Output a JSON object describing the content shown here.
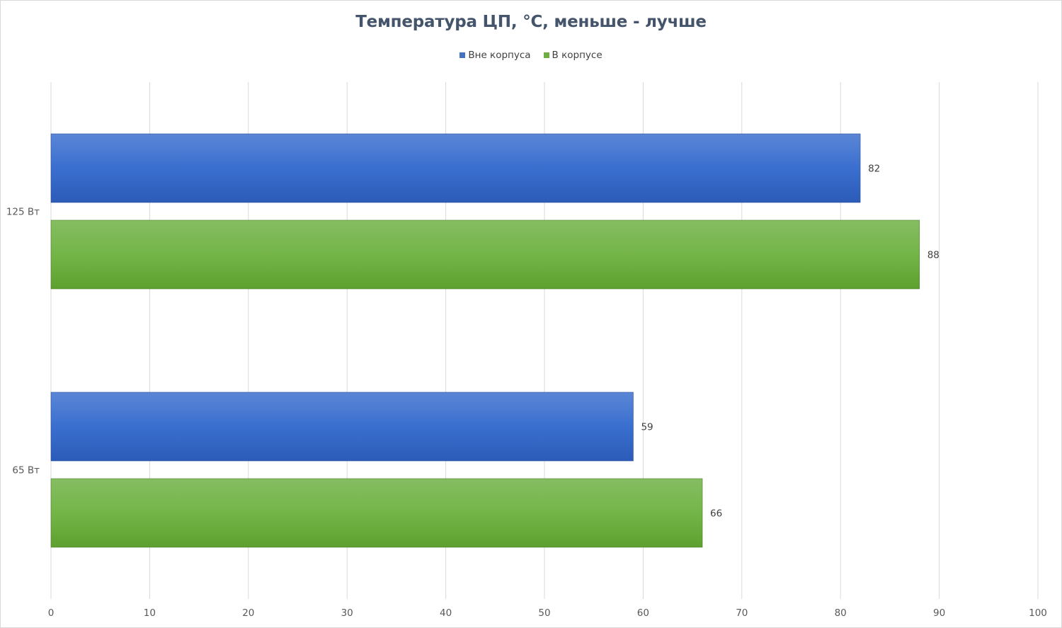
{
  "chart_data": {
    "type": "bar",
    "orientation": "horizontal",
    "title": "Температура ЦП, °C, меньше - лучше",
    "categories": [
      "125 Вт",
      "65 Вт"
    ],
    "series": [
      {
        "name": "Вне корпуса",
        "values": [
          82,
          59
        ],
        "color": "#4472c4"
      },
      {
        "name": "В корпусе",
        "values": [
          88,
          66
        ],
        "color": "#70ad47"
      }
    ],
    "xlabel": "",
    "ylabel": "",
    "xlim": [
      0,
      100
    ],
    "x_ticks": [
      0,
      10,
      20,
      30,
      40,
      50,
      60,
      70,
      80,
      90,
      100
    ],
    "grid": true,
    "legend_position": "top",
    "data_labels": true
  }
}
